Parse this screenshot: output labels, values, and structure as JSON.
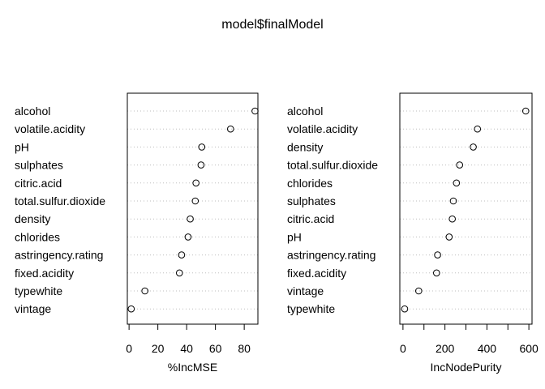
{
  "title": "model$finalModel",
  "chart_data": [
    {
      "type": "scatter",
      "subtype": "dotchart",
      "xlabel": "%IncMSE",
      "labels": [
        "alcohol",
        "volatile.acidity",
        "pH",
        "sulphates",
        "citric.acid",
        "total.sulfur.dioxide",
        "density",
        "chlorides",
        "astringency.rating",
        "fixed.acidity",
        "typewhite",
        "vintage"
      ],
      "values": [
        87.5,
        70.5,
        50.5,
        50.0,
        46.5,
        46.0,
        42.5,
        41.0,
        36.5,
        35.0,
        11.0,
        1.5
      ],
      "xticks": [
        0,
        20,
        40,
        60,
        80
      ],
      "xlim": [
        -1.2,
        89.5
      ],
      "grid": "dotted horizontal lines"
    },
    {
      "type": "scatter",
      "subtype": "dotchart",
      "xlabel": "IncNodePurity",
      "labels": [
        "alcohol",
        "volatile.acidity",
        "density",
        "total.sulfur.dioxide",
        "chlorides",
        "sulphates",
        "citric.acid",
        "pH",
        "astringency.rating",
        "fixed.acidity",
        "vintage",
        "typewhite"
      ],
      "values": [
        585,
        355,
        335,
        270,
        255,
        240,
        235,
        220,
        165,
        160,
        75,
        8
      ],
      "xticks": [
        0,
        200,
        400,
        600
      ],
      "minor_xticks": [
        100,
        300,
        500
      ],
      "xlim": [
        -15,
        615
      ],
      "grid": "dotted horizontal lines"
    }
  ]
}
